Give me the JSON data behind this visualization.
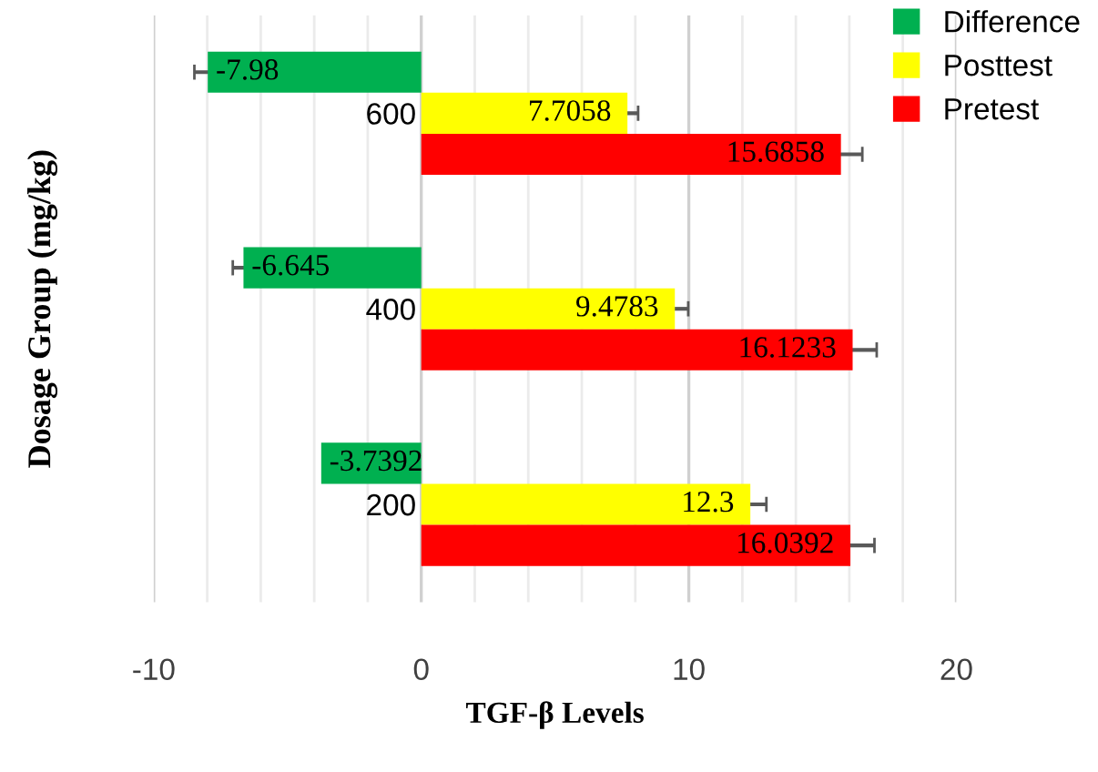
{
  "chart_data": {
    "type": "bar",
    "orientation": "horizontal",
    "xlabel": "TGF-β Levels",
    "ylabel": "Dosage Group (mg/kg)",
    "categories": [
      "600",
      "400",
      "200"
    ],
    "series": [
      {
        "name": "Difference",
        "color": "#00b050",
        "values": [
          -7.98,
          -6.645,
          -3.7392
        ],
        "errors": [
          0.5,
          0.4,
          null
        ]
      },
      {
        "name": "Posttest",
        "color": "#ffff00",
        "values": [
          7.7058,
          9.4783,
          12.3
        ],
        "errors": [
          0.4,
          0.5,
          0.6
        ]
      },
      {
        "name": "Pretest",
        "color": "#ff0000",
        "values": [
          15.6858,
          16.1233,
          16.0392
        ],
        "errors": [
          0.8,
          0.9,
          0.9
        ]
      }
    ],
    "xlim": [
      -10,
      20
    ],
    "xticks": [
      -10,
      {
        "value": -8,
        "label": null
      },
      {
        "value": -6,
        "label": null
      },
      {
        "value": -4,
        "label": null
      },
      {
        "value": -2,
        "label": null
      },
      0,
      {
        "value": 2,
        "label": null
      },
      {
        "value": 4,
        "label": null
      },
      {
        "value": 6,
        "label": null
      },
      {
        "value": 8,
        "label": null
      },
      10,
      {
        "value": 12,
        "label": null
      },
      {
        "value": 14,
        "label": null
      },
      {
        "value": 16,
        "label": null
      },
      {
        "value": 18,
        "label": null
      },
      20
    ],
    "grid": "x",
    "legend": "top right",
    "data_labels": true
  }
}
